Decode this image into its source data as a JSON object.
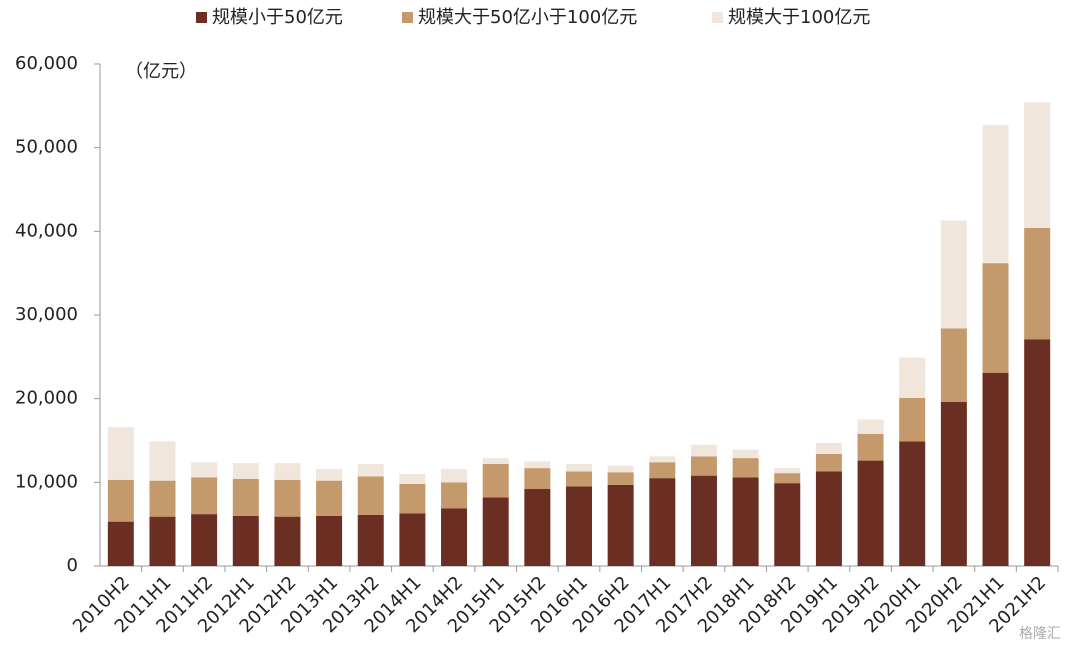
{
  "chart_data": {
    "type": "stacked_bar",
    "y_unit_label": "（亿元）",
    "watermark": "格隆汇",
    "categories": [
      "2010H2",
      "2011H1",
      "2011H2",
      "2012H1",
      "2012H2",
      "2013H1",
      "2013H2",
      "2014H1",
      "2014H2",
      "2015H1",
      "2015H2",
      "2016H1",
      "2016H2",
      "2017H1",
      "2017H2",
      "2018H1",
      "2018H2",
      "2019H1",
      "2019H2",
      "2020H1",
      "2020H2",
      "2021H1",
      "2021H2"
    ],
    "series": [
      {
        "name": "规模小于50亿元",
        "color": "#6b2e22",
        "values": [
          5300,
          5900,
          6200,
          6000,
          5900,
          6000,
          6100,
          6300,
          6900,
          8200,
          9200,
          9500,
          9700,
          10500,
          10800,
          10600,
          9900,
          11300,
          12600,
          14900,
          19600,
          23100,
          27100
        ]
      },
      {
        "name": "规模大于50亿小于100亿元",
        "color": "#c49a6c",
        "values": [
          5000,
          4300,
          4400,
          4400,
          4400,
          4200,
          4600,
          3500,
          3100,
          4000,
          2500,
          1800,
          1500,
          1900,
          2300,
          2300,
          1200,
          2100,
          3200,
          5200,
          8800,
          13100,
          13300
        ]
      },
      {
        "name": "规模大于100亿元",
        "color": "#f0e6dc",
        "values": [
          6300,
          4700,
          1800,
          1900,
          2000,
          1400,
          1500,
          1200,
          1600,
          700,
          800,
          900,
          800,
          700,
          1400,
          1000,
          600,
          1300,
          1700,
          4800,
          12900,
          16500,
          15000
        ]
      }
    ],
    "ylim": [
      0,
      60000
    ],
    "yticks": [
      0,
      {
        "value": 10000,
        "label": "10,000"
      },
      {
        "value": 20000,
        "label": "20,000"
      },
      {
        "value": 30000,
        "label": "30,000"
      },
      {
        "value": 40000,
        "label": "40,000"
      },
      {
        "value": 50000,
        "label": "50,000"
      },
      {
        "value": 60000,
        "label": "60,000"
      }
    ],
    "legend": "top"
  }
}
